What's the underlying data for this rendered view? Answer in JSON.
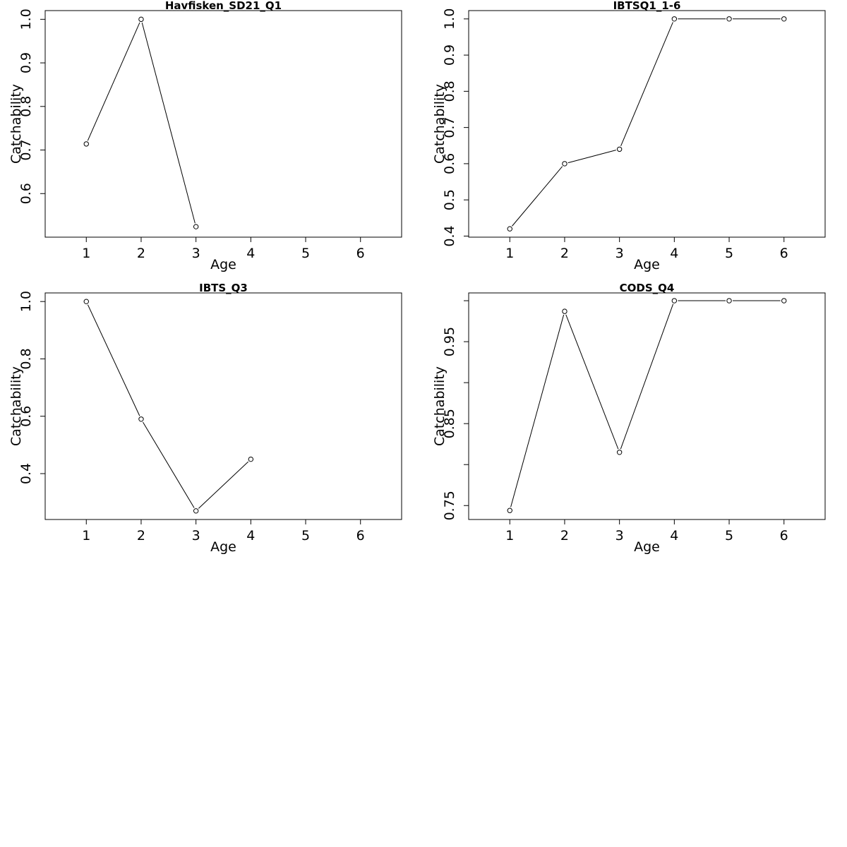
{
  "figure": {
    "background": "#ffffff",
    "line_color": "#000000",
    "marker": "open-circle"
  },
  "chart_data": [
    {
      "type": "line",
      "title": "Havfisken_SD21_Q1",
      "xlabel": "Age",
      "ylabel": "Catchability",
      "xlim": [
        0.25,
        6.75
      ],
      "ylim": [
        0.5,
        1.02
      ],
      "x_ticks": [
        1,
        2,
        3,
        4,
        5,
        6
      ],
      "x_tick_labels": [
        "1",
        "2",
        "3",
        "4",
        "5",
        "6"
      ],
      "y_ticks": [
        0.6,
        0.7,
        0.8,
        0.9,
        1.0
      ],
      "y_tick_labels": [
        "0.6",
        "0.7",
        "0.8",
        "0.9",
        "1.0"
      ],
      "grid": false,
      "x": [
        1,
        2,
        3
      ],
      "values": [
        0.714,
        1.0,
        0.524
      ]
    },
    {
      "type": "line",
      "title": "IBTSQ1_1-6",
      "xlabel": "Age",
      "ylabel": "Catchability",
      "xlim": [
        0.25,
        6.75
      ],
      "ylim": [
        0.397,
        1.023
      ],
      "x_ticks": [
        1,
        2,
        3,
        4,
        5,
        6
      ],
      "x_tick_labels": [
        "1",
        "2",
        "3",
        "4",
        "5",
        "6"
      ],
      "y_ticks": [
        0.4,
        0.5,
        0.6,
        0.7,
        0.8,
        0.9,
        1.0
      ],
      "y_tick_labels": [
        "0.4",
        "0.5",
        "0.6",
        "0.7",
        "0.8",
        "0.9",
        "1.0"
      ],
      "grid": false,
      "x": [
        1,
        2,
        3,
        4,
        5,
        6
      ],
      "values": [
        0.42,
        0.6,
        0.64,
        1.0,
        1.0,
        1.0
      ]
    },
    {
      "type": "line",
      "title": "IBTS_Q3",
      "xlabel": "Age",
      "ylabel": "Catchability",
      "xlim": [
        0.25,
        6.75
      ],
      "ylim": [
        0.24,
        1.03
      ],
      "x_ticks": [
        1,
        2,
        3,
        4,
        5,
        6
      ],
      "x_tick_labels": [
        "1",
        "2",
        "3",
        "4",
        "5",
        "6"
      ],
      "y_ticks": [
        0.4,
        0.6,
        0.8,
        1.0
      ],
      "y_tick_labels": [
        "0.4",
        "0.6",
        "0.8",
        "1.0"
      ],
      "grid": false,
      "x": [
        1,
        2,
        3,
        4
      ],
      "values": [
        1.0,
        0.59,
        0.27,
        0.45
      ]
    },
    {
      "type": "line",
      "title": "CODS_Q4",
      "xlabel": "Age",
      "ylabel": "Catchability",
      "xlim": [
        0.25,
        6.75
      ],
      "ylim": [
        0.733,
        1.0095
      ],
      "x_ticks": [
        1,
        2,
        3,
        4,
        5,
        6
      ],
      "x_tick_labels": [
        "1",
        "2",
        "3",
        "4",
        "5",
        "6"
      ],
      "y_ticks": [
        0.75,
        0.85,
        0.95
      ],
      "y_tick_labels": [
        "0.75",
        "0.85",
        "0.95"
      ],
      "y_minor_ticks": [
        0.8,
        0.9,
        1.0
      ],
      "grid": false,
      "x": [
        1,
        2,
        3,
        4,
        5,
        6
      ],
      "values": [
        0.744,
        0.987,
        0.815,
        1.0,
        1.0,
        1.0
      ]
    }
  ]
}
